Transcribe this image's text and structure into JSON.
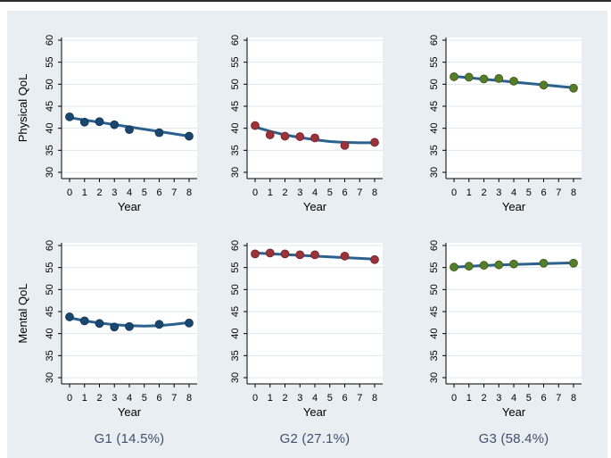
{
  "figure": {
    "description": "Six-panel trajectory plot of quality-of-life scores over time for three latent groups",
    "row_titles": [
      "Physical QoL",
      "Mental QoL"
    ],
    "x_axis_title": "Year"
  },
  "group_labels": [
    "G1 (14.5%)",
    "G2 (27.1%)",
    "G3 (58.4%)"
  ],
  "style": {
    "page_bg": "#ffffff",
    "panel_bg": "#e8eef1",
    "plot_bg": "#ffffff",
    "grid_color": "#dde7eb",
    "axis_color": "#000000",
    "text_color": "#000000",
    "fit_line_color": "#2a618f",
    "group_label_color": "#414f6b",
    "top_border_color": "#2b2b2b",
    "navy": "#1a476f",
    "maroon": "#9c3339",
    "green": "#567d27"
  },
  "chart_data": [
    {
      "id": "physical-g1",
      "type": "scatter",
      "row": 0,
      "col": 0,
      "xlabel": "Year",
      "ylabel": "Physical QoL",
      "xlim": [
        -0.55,
        8.5
      ],
      "ylim": [
        27.9,
        60.6
      ],
      "xticks": [
        0,
        1,
        2,
        3,
        4,
        5,
        6,
        7,
        8
      ],
      "yticks": [
        30,
        35,
        40,
        45,
        50,
        55,
        60
      ],
      "grid": true,
      "legend": "none",
      "marker_color": "#1a476f",
      "marker_edge": "#143a5c",
      "points": [
        [
          0,
          42.6
        ],
        [
          1,
          41.4
        ],
        [
          2,
          41.5
        ],
        [
          3,
          40.8
        ],
        [
          4,
          39.7
        ],
        [
          6,
          39.0
        ],
        [
          8,
          38.2
        ]
      ],
      "fit": [
        [
          0,
          42.4
        ],
        [
          8,
          38.2
        ]
      ]
    },
    {
      "id": "physical-g2",
      "type": "scatter",
      "row": 0,
      "col": 1,
      "xlabel": "Year",
      "ylabel": "",
      "xlim": [
        -0.55,
        8.5
      ],
      "ylim": [
        27.9,
        60.6
      ],
      "xticks": [
        0,
        1,
        2,
        3,
        4,
        5,
        6,
        7,
        8
      ],
      "yticks": [
        30,
        35,
        40,
        45,
        50,
        55,
        60
      ],
      "grid": true,
      "legend": "none",
      "marker_color": "#9c3339",
      "marker_edge": "#7c272e",
      "points": [
        [
          0,
          40.6
        ],
        [
          1,
          38.5
        ],
        [
          2,
          38.2
        ],
        [
          3,
          38.1
        ],
        [
          4,
          37.8
        ],
        [
          6,
          36.1
        ],
        [
          8,
          36.8
        ]
      ],
      "fit": [
        [
          0,
          40.3
        ],
        [
          1,
          39.3
        ],
        [
          2,
          38.5
        ],
        [
          3,
          37.9
        ],
        [
          4,
          37.4
        ],
        [
          5,
          37.0
        ],
        [
          6,
          36.8
        ],
        [
          7,
          36.7
        ],
        [
          8,
          36.7
        ]
      ]
    },
    {
      "id": "physical-g3",
      "type": "scatter",
      "row": 0,
      "col": 2,
      "xlabel": "Year",
      "ylabel": "",
      "xlim": [
        -0.55,
        8.5
      ],
      "ylim": [
        27.9,
        60.6
      ],
      "xticks": [
        0,
        1,
        2,
        3,
        4,
        5,
        6,
        7,
        8
      ],
      "yticks": [
        30,
        35,
        40,
        45,
        50,
        55,
        60
      ],
      "grid": true,
      "legend": "none",
      "marker_color": "#567d27",
      "marker_edge": "#425f1e",
      "points": [
        [
          0,
          51.7
        ],
        [
          1,
          51.6
        ],
        [
          2,
          51.2
        ],
        [
          3,
          51.3
        ],
        [
          4,
          50.7
        ],
        [
          6,
          49.8
        ],
        [
          8,
          49.1
        ]
      ],
      "fit": [
        [
          0,
          51.8
        ],
        [
          8,
          49.2
        ]
      ]
    },
    {
      "id": "mental-g1",
      "type": "scatter",
      "row": 1,
      "col": 0,
      "xlabel": "Year",
      "ylabel": "Mental QoL",
      "xlim": [
        -0.55,
        8.5
      ],
      "ylim": [
        27.9,
        60.6
      ],
      "xticks": [
        0,
        1,
        2,
        3,
        4,
        5,
        6,
        7,
        8
      ],
      "yticks": [
        30,
        35,
        40,
        45,
        50,
        55,
        60
      ],
      "grid": true,
      "legend": "none",
      "marker_color": "#1a476f",
      "marker_edge": "#143a5c",
      "points": [
        [
          0,
          43.8
        ],
        [
          1,
          42.9
        ],
        [
          2,
          42.3
        ],
        [
          3,
          41.5
        ],
        [
          4,
          41.6
        ],
        [
          6,
          42.1
        ],
        [
          8,
          42.4
        ]
      ],
      "fit": [
        [
          0,
          43.6
        ],
        [
          1,
          42.9
        ],
        [
          2,
          42.4
        ],
        [
          3,
          42.0
        ],
        [
          4,
          41.8
        ],
        [
          5,
          41.7
        ],
        [
          6,
          41.8
        ],
        [
          7,
          42.1
        ],
        [
          8,
          42.5
        ]
      ]
    },
    {
      "id": "mental-g2",
      "type": "scatter",
      "row": 1,
      "col": 1,
      "xlabel": "Year",
      "ylabel": "",
      "xlim": [
        -0.55,
        8.5
      ],
      "ylim": [
        27.9,
        60.6
      ],
      "xticks": [
        0,
        1,
        2,
        3,
        4,
        5,
        6,
        7,
        8
      ],
      "yticks": [
        30,
        35,
        40,
        45,
        50,
        55,
        60
      ],
      "grid": true,
      "legend": "none",
      "marker_color": "#9c3339",
      "marker_edge": "#7c272e",
      "points": [
        [
          0,
          58.1
        ],
        [
          1,
          58.3
        ],
        [
          2,
          58.1
        ],
        [
          3,
          57.9
        ],
        [
          4,
          57.9
        ],
        [
          6,
          57.6
        ],
        [
          8,
          56.8
        ]
      ],
      "fit": [
        [
          0,
          58.3
        ],
        [
          8,
          56.9
        ]
      ]
    },
    {
      "id": "mental-g3",
      "type": "scatter",
      "row": 1,
      "col": 2,
      "xlabel": "Year",
      "ylabel": "",
      "xlim": [
        -0.55,
        8.5
      ],
      "ylim": [
        27.9,
        60.6
      ],
      "xticks": [
        0,
        1,
        2,
        3,
        4,
        5,
        6,
        7,
        8
      ],
      "yticks": [
        30,
        35,
        40,
        45,
        50,
        55,
        60
      ],
      "grid": true,
      "legend": "none",
      "marker_color": "#567d27",
      "marker_edge": "#425f1e",
      "points": [
        [
          0,
          55.1
        ],
        [
          1,
          55.3
        ],
        [
          2,
          55.5
        ],
        [
          3,
          55.6
        ],
        [
          4,
          55.8
        ],
        [
          6,
          56.0
        ],
        [
          8,
          56.0
        ]
      ],
      "fit": [
        [
          0,
          55.1
        ],
        [
          2,
          55.45
        ],
        [
          4,
          55.7
        ],
        [
          6,
          55.9
        ],
        [
          8,
          56.05
        ]
      ]
    }
  ]
}
